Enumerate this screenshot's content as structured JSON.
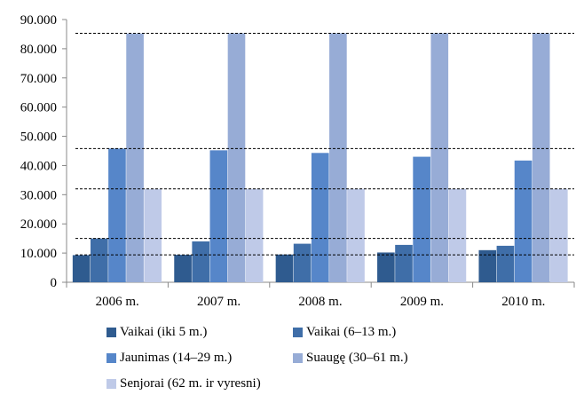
{
  "chart_data": {
    "type": "bar",
    "categories": [
      "2006 m.",
      "2007 m.",
      "2008 m.",
      "2009 m.",
      "2010 m."
    ],
    "ylim": [
      0,
      90000
    ],
    "yticks": [
      0,
      10000,
      20000,
      30000,
      40000,
      50000,
      60000,
      70000,
      80000,
      90000
    ],
    "ytick_labels": [
      "0",
      "10.000",
      "20.000",
      "30.000",
      "40.000",
      "50.000",
      "60.000",
      "70.000",
      "80.000",
      "90.000"
    ],
    "series": [
      {
        "name": "Vaikai (iki 5 m.)",
        "color": "#2f5b8f",
        "values": [
          9300,
          9400,
          9500,
          10200,
          11000
        ]
      },
      {
        "name": "Vaikai (6–13 m.)",
        "color": "#3f6ea8",
        "values": [
          15000,
          14000,
          13200,
          12800,
          12500
        ]
      },
      {
        "name": "Jaunimas (14–29 m.)",
        "color": "#5686c9",
        "values": [
          45800,
          45200,
          44300,
          43000,
          41700
        ]
      },
      {
        "name": "Suaugę (30–61 m.)",
        "color": "#97acd6",
        "values": [
          85200,
          85300,
          85300,
          85300,
          85300
        ]
      },
      {
        "name": "Senjorai (62 m. ir vyresni)",
        "color": "#bfcae8",
        "values": [
          31900,
          32000,
          32000,
          32000,
          32000
        ]
      }
    ],
    "reference_lines": [
      85300,
      45800,
      32000,
      15000,
      9400
    ],
    "grid": false,
    "legend_position": "bottom"
  }
}
